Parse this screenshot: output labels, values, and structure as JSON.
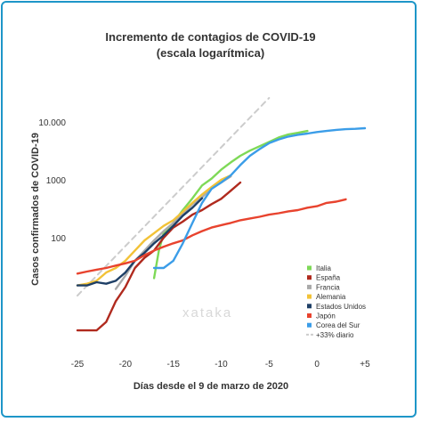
{
  "chart_data": {
    "type": "line",
    "title": "Incremento de contagios de COVID-19",
    "subtitle": "(escala logarítmica)",
    "xlabel": "Días desde el 9 de marzo de 2020",
    "ylabel": "Casos confirmados de COVID-19",
    "y_scale": "log",
    "xlim": [
      -25,
      5
    ],
    "ylim": [
      1.2,
      20000
    ],
    "x_ticks": [
      {
        "value": -25,
        "label": "-25"
      },
      {
        "value": -20,
        "label": "-20"
      },
      {
        "value": -15,
        "label": "-15"
      },
      {
        "value": -10,
        "label": "-10"
      },
      {
        "value": -5,
        "label": "-5"
      },
      {
        "value": 0,
        "label": "0"
      },
      {
        "value": 5,
        "label": "+5"
      }
    ],
    "y_ticks": [
      {
        "value": 100,
        "label": "100"
      },
      {
        "value": 1000,
        "label": "1000"
      },
      {
        "value": 10000,
        "label": "10.000"
      }
    ],
    "grid": false,
    "legend_position": "bottom-right",
    "watermark": "xataka",
    "series": [
      {
        "name": "Italia",
        "color": "#7ed957",
        "dash": false,
        "points": [
          [
            -17,
            20
          ],
          [
            -16.5,
            60
          ],
          [
            -16,
            120
          ],
          [
            -15,
            180
          ],
          [
            -14,
            300
          ],
          [
            -13,
            480
          ],
          [
            -12,
            800
          ],
          [
            -11,
            1050
          ],
          [
            -10,
            1500
          ],
          [
            -9,
            2000
          ],
          [
            -8,
            2600
          ],
          [
            -7,
            3200
          ],
          [
            -6,
            3800
          ],
          [
            -5,
            4500
          ],
          [
            -4,
            5400
          ],
          [
            -3,
            6100
          ],
          [
            -2,
            6500
          ],
          [
            -1,
            7000
          ]
        ]
      },
      {
        "name": "España",
        "color": "#b02a1e",
        "dash": false,
        "points": [
          [
            -25,
            2.5
          ],
          [
            -24,
            2.5
          ],
          [
            -23,
            2.5
          ],
          [
            -22,
            3.5
          ],
          [
            -21,
            8
          ],
          [
            -20,
            14
          ],
          [
            -19,
            30
          ],
          [
            -18,
            45
          ],
          [
            -17,
            60
          ],
          [
            -16,
            100
          ],
          [
            -15,
            150
          ],
          [
            -14,
            190
          ],
          [
            -13,
            250
          ],
          [
            -12,
            300
          ],
          [
            -11,
            380
          ],
          [
            -10,
            470
          ],
          [
            -9,
            650
          ],
          [
            -8,
            900
          ]
        ]
      },
      {
        "name": "Francia",
        "color": "#aaaaaa",
        "dash": false,
        "points": [
          [
            -21,
            13
          ],
          [
            -20,
            22
          ],
          [
            -19,
            40
          ],
          [
            -18,
            60
          ],
          [
            -17,
            90
          ],
          [
            -16,
            130
          ],
          [
            -15,
            180
          ],
          [
            -14,
            260
          ],
          [
            -13,
            380
          ],
          [
            -12,
            500
          ],
          [
            -11,
            720
          ],
          [
            -10,
            900
          ],
          [
            -9,
            1150
          ]
        ]
      },
      {
        "name": "Alemania",
        "color": "#f2c237",
        "dash": false,
        "points": [
          [
            -25,
            15
          ],
          [
            -24,
            16
          ],
          [
            -23,
            18
          ],
          [
            -22,
            25
          ],
          [
            -21,
            30
          ],
          [
            -20,
            40
          ],
          [
            -19,
            60
          ],
          [
            -18,
            90
          ],
          [
            -17,
            120
          ],
          [
            -16,
            160
          ],
          [
            -15,
            200
          ],
          [
            -14,
            280
          ],
          [
            -13,
            400
          ],
          [
            -12,
            560
          ],
          [
            -11,
            750
          ],
          [
            -10,
            1000
          ],
          [
            -9,
            1200
          ]
        ]
      },
      {
        "name": "Estados Unidos",
        "color": "#1e3f66",
        "dash": false,
        "points": [
          [
            -25,
            15
          ],
          [
            -24,
            15
          ],
          [
            -23,
            17
          ],
          [
            -22,
            16
          ],
          [
            -21,
            18
          ],
          [
            -20,
            25
          ],
          [
            -19,
            40
          ],
          [
            -18,
            55
          ],
          [
            -17,
            80
          ],
          [
            -16,
            110
          ],
          [
            -15,
            160
          ],
          [
            -14,
            240
          ],
          [
            -13,
            330
          ],
          [
            -12,
            480
          ]
        ]
      },
      {
        "name": "Japón",
        "color": "#e8432e",
        "dash": false,
        "points": [
          [
            -25,
            24
          ],
          [
            -24,
            26
          ],
          [
            -23,
            28
          ],
          [
            -22,
            30
          ],
          [
            -21,
            33
          ],
          [
            -20,
            36
          ],
          [
            -19,
            40
          ],
          [
            -18,
            50
          ],
          [
            -17,
            60
          ],
          [
            -16,
            70
          ],
          [
            -15,
            80
          ],
          [
            -14,
            90
          ],
          [
            -13,
            110
          ],
          [
            -12,
            130
          ],
          [
            -11,
            150
          ],
          [
            -10,
            165
          ],
          [
            -9,
            180
          ],
          [
            -8,
            200
          ],
          [
            -7,
            215
          ],
          [
            -6,
            230
          ],
          [
            -5,
            250
          ],
          [
            -4,
            265
          ],
          [
            -3,
            285
          ],
          [
            -2,
            300
          ],
          [
            -1,
            330
          ],
          [
            0,
            350
          ],
          [
            1,
            400
          ],
          [
            2,
            420
          ],
          [
            3,
            460
          ]
        ]
      },
      {
        "name": "Corea del Sur",
        "color": "#3b9de8",
        "dash": false,
        "points": [
          [
            -17,
            30
          ],
          [
            -16,
            30
          ],
          [
            -15,
            40
          ],
          [
            -14,
            80
          ],
          [
            -13,
            180
          ],
          [
            -12,
            400
          ],
          [
            -11,
            700
          ],
          [
            -10,
            900
          ],
          [
            -9,
            1200
          ],
          [
            -8,
            1800
          ],
          [
            -7,
            2600
          ],
          [
            -6,
            3400
          ],
          [
            -5,
            4300
          ],
          [
            -4,
            5000
          ],
          [
            -3,
            5600
          ],
          [
            -2,
            6000
          ],
          [
            -1,
            6300
          ],
          [
            0,
            6700
          ],
          [
            1,
            7000
          ],
          [
            2,
            7300
          ],
          [
            3,
            7500
          ],
          [
            4,
            7600
          ],
          [
            5,
            7800
          ]
        ]
      },
      {
        "name": "+33% diario",
        "color": "#cccccc",
        "dash": true,
        "points": [
          [
            -25,
            10
          ],
          [
            -5,
            26000
          ]
        ]
      }
    ]
  }
}
